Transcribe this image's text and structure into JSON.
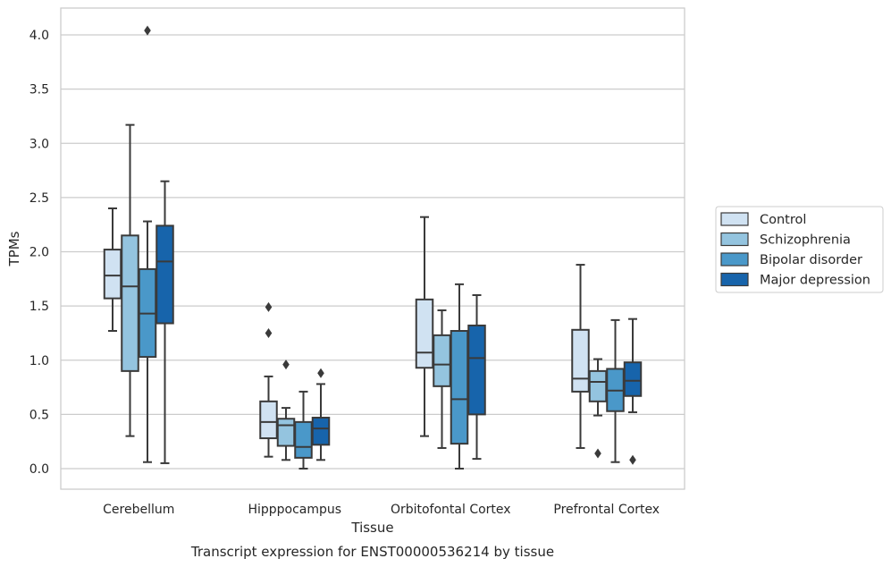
{
  "chart_data": {
    "type": "box",
    "title": "Transcript expression for ENST00000536214 by tissue",
    "xlabel": "Tissue",
    "ylabel": "TPMs",
    "ylim": [
      -0.2,
      4.25
    ],
    "yticks": [
      "0.0",
      "0.5",
      "1.0",
      "1.5",
      "2.0",
      "2.5",
      "3.0",
      "3.5",
      "4.0"
    ],
    "grid": "horizontal",
    "legend_position": "right",
    "categories": [
      "Cerebellum",
      "Hipppocampus",
      "Orbitofontal Cortex",
      "Prefrontal Cortex"
    ],
    "series": [
      {
        "name": "Control",
        "color": "#d0e2f2",
        "boxes": [
          {
            "whisker_low": 1.27,
            "q1": 1.57,
            "median": 1.78,
            "q3": 2.02,
            "whisker_high": 2.4,
            "outliers": []
          },
          {
            "whisker_low": 0.11,
            "q1": 0.28,
            "median": 0.43,
            "q3": 0.62,
            "whisker_high": 0.85,
            "outliers": [
              1.25,
              1.49
            ]
          },
          {
            "whisker_low": 0.3,
            "q1": 0.93,
            "median": 1.07,
            "q3": 1.56,
            "whisker_high": 2.32,
            "outliers": []
          },
          {
            "whisker_low": 0.19,
            "q1": 0.71,
            "median": 0.83,
            "q3": 1.28,
            "whisker_high": 1.88,
            "outliers": []
          }
        ]
      },
      {
        "name": "Schizophrenia",
        "color": "#94c4df",
        "boxes": [
          {
            "whisker_low": 0.3,
            "q1": 0.9,
            "median": 1.68,
            "q3": 2.15,
            "whisker_high": 3.17,
            "outliers": []
          },
          {
            "whisker_low": 0.08,
            "q1": 0.21,
            "median": 0.4,
            "q3": 0.46,
            "whisker_high": 0.56,
            "outliers": [
              0.96
            ]
          },
          {
            "whisker_low": 0.19,
            "q1": 0.76,
            "median": 0.96,
            "q3": 1.23,
            "whisker_high": 1.46,
            "outliers": []
          },
          {
            "whisker_low": 0.49,
            "q1": 0.62,
            "median": 0.8,
            "q3": 0.9,
            "whisker_high": 1.01,
            "outliers": [
              0.14
            ]
          }
        ]
      },
      {
        "name": "Bipolar disorder",
        "color": "#4a98c9",
        "boxes": [
          {
            "whisker_low": 0.06,
            "q1": 1.03,
            "median": 1.43,
            "q3": 1.84,
            "whisker_high": 2.28,
            "outliers": [
              4.04
            ]
          },
          {
            "whisker_low": 0.0,
            "q1": 0.1,
            "median": 0.2,
            "q3": 0.43,
            "whisker_high": 0.71,
            "outliers": []
          },
          {
            "whisker_low": 0.0,
            "q1": 0.23,
            "median": 0.64,
            "q3": 1.27,
            "whisker_high": 1.7,
            "outliers": []
          },
          {
            "whisker_low": 0.06,
            "q1": 0.53,
            "median": 0.72,
            "q3": 0.92,
            "whisker_high": 1.37,
            "outliers": []
          }
        ]
      },
      {
        "name": "Major depression",
        "color": "#1764ab",
        "boxes": [
          {
            "whisker_low": 0.05,
            "q1": 1.34,
            "median": 1.91,
            "q3": 2.24,
            "whisker_high": 2.65,
            "outliers": []
          },
          {
            "whisker_low": 0.08,
            "q1": 0.22,
            "median": 0.37,
            "q3": 0.47,
            "whisker_high": 0.78,
            "outliers": [
              0.88
            ]
          },
          {
            "whisker_low": 0.09,
            "q1": 0.5,
            "median": 1.02,
            "q3": 1.32,
            "whisker_high": 1.6,
            "outliers": []
          },
          {
            "whisker_low": 0.52,
            "q1": 0.67,
            "median": 0.81,
            "q3": 0.98,
            "whisker_high": 1.38,
            "outliers": [
              0.08
            ]
          }
        ]
      }
    ]
  }
}
